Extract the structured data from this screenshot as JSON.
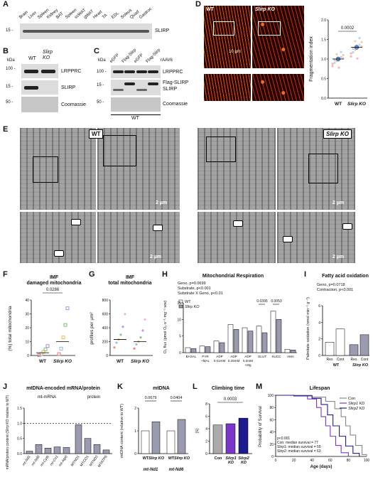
{
  "panels": {
    "A": {
      "letter": "A",
      "kda_15": "15 -",
      "tissues": [
        "Brain",
        "Liver",
        "Spleen",
        "Kidney",
        "BAT",
        "Spleen",
        "scWAT",
        "gWAT",
        "Heart",
        "TA",
        "EDL",
        "Soleus",
        "Quad",
        "Gastroc"
      ],
      "protein": "SLIRP"
    },
    "B": {
      "letter": "B",
      "kda": "kDa",
      "wt": "WT",
      "ko": "Slirp KO",
      "kda_100": "100 -",
      "kda_15": "15 -",
      "kda_50": "50 -",
      "rows": [
        "LRPPRC",
        "SLIRP",
        "Coomassie"
      ]
    },
    "C": {
      "letter": "C",
      "kda": "kDa",
      "kda_100": "100 -",
      "kda_15": "15 -",
      "kda_50": "50 -",
      "lanes": [
        "eGFP",
        "Flag-Slirp",
        "eGFP",
        "Flag-Slirp"
      ],
      "raav": "rAAV6",
      "rows": [
        "LRPPRC",
        "Flag-SLIRP",
        "SLIRP",
        "Coomassie"
      ],
      "genotype": "WT"
    },
    "D": {
      "letter": "D",
      "wt": "WT",
      "ko": "Slirp KO",
      "scale": "10 µm",
      "ylabel": "Fragmentation index",
      "pval": "0.0002",
      "yticks": [
        "0.0",
        "0.5",
        "1.0",
        "1.5",
        "2.0"
      ],
      "xcats": [
        "WT",
        "Slirp KO"
      ]
    },
    "E": {
      "letter": "E",
      "wt": "WT",
      "ko": "Slirp KO",
      "scale": "2 µm"
    },
    "F": {
      "letter": "F",
      "title1": "IMF",
      "title2": "damaged mitochondria",
      "ylabel": "(%) total mitochondria",
      "pval": "0.0286",
      "yticks": [
        "0",
        "10",
        "20",
        "30",
        "40"
      ],
      "xcats": [
        "WT",
        "Slirp KO"
      ]
    },
    "G": {
      "letter": "G",
      "title1": "IMF",
      "title2": "total mitochondria",
      "ylabel": "profiles per µm²",
      "yticks": [
        "0",
        "200",
        "400",
        "600",
        "800"
      ],
      "xcats": [
        "WT",
        "Slirp KO"
      ]
    },
    "H": {
      "letter": "H",
      "title": "Mitochondrial Respiration",
      "stats": [
        "Geno, p=0.0699",
        "Substrate, p<0.001",
        "Substrate X Geno, p<0.01"
      ],
      "legend": [
        "WT",
        "Slirp KO"
      ],
      "ylabel": "O₂ flux (pmol O₂·s⁻¹·mg⁻¹ ww)",
      "yticks": [
        "0",
        "5",
        "10",
        "15"
      ],
      "xcats": [
        "BASAL",
        "PYR\n+MAL",
        "ADP\n0.01mM",
        "ADP\n0.25mM",
        "ADP\n5.0mM\n+Mg",
        "GLUT",
        "SUCC",
        "AMA"
      ],
      "p_glut": "0.0395",
      "p_succ": "0.0053"
    },
    "I": {
      "letter": "I",
      "title": "Fatty acid oxidation",
      "stats": [
        "Geno, p=0.0718",
        "Contraction, p<0.001"
      ],
      "ylabel": "Palmitate oxidation (nmol min⁻¹ g⁻¹)",
      "yticks": [
        "0",
        "2",
        "4",
        "6"
      ],
      "xcats": [
        "Res",
        "Cont",
        "Res",
        "Cont"
      ],
      "groups": [
        "WT",
        "Slirp KO"
      ]
    },
    "J": {
      "letter": "J",
      "title": "mtDNA-encoded mRNA/protein",
      "sub_mrna": "mt-mRNA",
      "sub_protein": "protein",
      "ylabel": "mRNA/protein content (Slirp KO relative to WT)",
      "yticks": [
        "0.0",
        "0.5",
        "1.0",
        "1.5"
      ],
      "xcats": [
        "mt-Nd1",
        "mt-Nd6",
        "mt-Cytb",
        "mt-Co1",
        "mt-Atp6",
        "MTND1",
        "MTCO1",
        "MTND3",
        "MTATP6"
      ]
    },
    "K": {
      "letter": "K",
      "title": "mtDNA",
      "ylabel": "mtDNA content (relative to WT)",
      "p1": "0.0679",
      "p2": "0.0404",
      "yticks": [
        "0",
        "1",
        "2"
      ],
      "groups": [
        "mt-Nd1",
        "mt-Nd6"
      ],
      "xcats": [
        "WT",
        "Slirp KO",
        "WT",
        "Slirp KO"
      ]
    },
    "L": {
      "letter": "L",
      "title": "Climbing time",
      "ylabel": "(s)",
      "pval": "0.0003",
      "yticks": [
        "0",
        "2",
        "4",
        "6",
        "8"
      ],
      "xcats": [
        "Con",
        "Slirp1 KD",
        "Slirp2 KD"
      ]
    },
    "M": {
      "letter": "M",
      "title": "Lifespan",
      "ylabel": "Probability of Survival",
      "xlabel": "Age (days)",
      "yticks": [
        "0",
        "20",
        "40",
        "60",
        "80",
        "100"
      ],
      "xticks": [
        "0",
        "20",
        "40",
        "60",
        "80",
        "100"
      ],
      "legend": [
        "Con",
        "Slirp1 KD",
        "Slirp2 KD"
      ],
      "stats": [
        "p<0.001",
        "Con: median survival = 77",
        "Slirp1: median survival = 55",
        "Slirp2: median survival = 63"
      ]
    }
  },
  "chart_data": [
    {
      "panel": "D",
      "type": "scatter",
      "categories": [
        "WT",
        "Slirp KO"
      ],
      "values": [
        1.0,
        1.3
      ],
      "ylim": [
        0,
        2.0
      ],
      "ylabel": "Fragmentation index"
    },
    {
      "panel": "F",
      "type": "scatter",
      "categories": [
        "WT",
        "Slirp KO"
      ],
      "values": [
        2,
        10
      ],
      "ylim": [
        0,
        40
      ],
      "ylabel": "(%) total mitochondria"
    },
    {
      "panel": "G",
      "type": "scatter",
      "categories": [
        "WT",
        "Slirp KO"
      ],
      "values": [
        230,
        200
      ],
      "ylim": [
        0,
        800
      ],
      "ylabel": "profiles per µm²"
    },
    {
      "panel": "H",
      "type": "bar",
      "categories": [
        "BASAL",
        "PYR+MAL",
        "ADP 0.01mM",
        "ADP 0.25mM",
        "ADP 5.0mM+Mg",
        "GLUT",
        "SUCC",
        "AMA"
      ],
      "series": [
        {
          "name": "WT",
          "values": [
            1.5,
            2.0,
            3.5,
            8.5,
            7.5,
            8.0,
            12.5,
            1.0
          ]
        },
        {
          "name": "Slirp KO",
          "values": [
            1.2,
            1.8,
            3.0,
            7.0,
            6.5,
            6.0,
            10.0,
            0.8
          ]
        }
      ],
      "ylim": [
        0,
        15
      ]
    },
    {
      "panel": "I",
      "type": "bar",
      "categories": [
        "WT Res",
        "WT Cont",
        "Slirp KO Res",
        "Slirp KO Cont"
      ],
      "values": [
        1.6,
        3.2,
        1.3,
        2.5
      ],
      "ylim": [
        0,
        6
      ]
    },
    {
      "panel": "J",
      "type": "bar",
      "categories": [
        "mt-Nd1",
        "mt-Nd6",
        "mt-Cytb",
        "mt-Co1",
        "mt-Atp6",
        "MTND1",
        "MTCO1",
        "MTND3",
        "MTATP6"
      ],
      "values": [
        0.08,
        0.3,
        0.18,
        0.22,
        0.2,
        0.95,
        0.5,
        0.3,
        0.12
      ],
      "ylim": [
        0,
        1.5
      ]
    },
    {
      "panel": "K",
      "type": "bar",
      "categories": [
        "mt-Nd1 WT",
        "mt-Nd1 Slirp KO",
        "mt-Nd6 WT",
        "mt-Nd6 Slirp KO"
      ],
      "values": [
        1.0,
        1.4,
        1.0,
        1.5
      ],
      "ylim": [
        0,
        2
      ]
    },
    {
      "panel": "L",
      "type": "bar",
      "categories": [
        "Con",
        "Slirp1 KD",
        "Slirp2 KD"
      ],
      "values": [
        4.6,
        4.8,
        5.7
      ],
      "ylim": [
        0,
        8
      ]
    },
    {
      "panel": "M",
      "type": "line",
      "xlabel": "Age (days)",
      "ylabel": "Probability of Survival",
      "xlim": [
        0,
        100
      ],
      "ylim": [
        0,
        100
      ],
      "series": [
        {
          "name": "Con",
          "x": [
            0,
            20,
            40,
            55,
            65,
            72,
            77,
            82,
            88,
            95,
            100
          ],
          "y": [
            100,
            100,
            97,
            90,
            78,
            65,
            50,
            35,
            18,
            3,
            0
          ]
        },
        {
          "name": "Slirp1 KD",
          "x": [
            0,
            20,
            35,
            45,
            50,
            55,
            60,
            66,
            72,
            80
          ],
          "y": [
            100,
            99,
            94,
            80,
            65,
            50,
            33,
            18,
            6,
            0
          ]
        },
        {
          "name": "Slirp2 KD",
          "x": [
            0,
            20,
            40,
            50,
            57,
            63,
            70,
            77,
            85,
            92
          ],
          "y": [
            100,
            99,
            95,
            85,
            68,
            50,
            33,
            17,
            5,
            0
          ]
        }
      ]
    }
  ]
}
